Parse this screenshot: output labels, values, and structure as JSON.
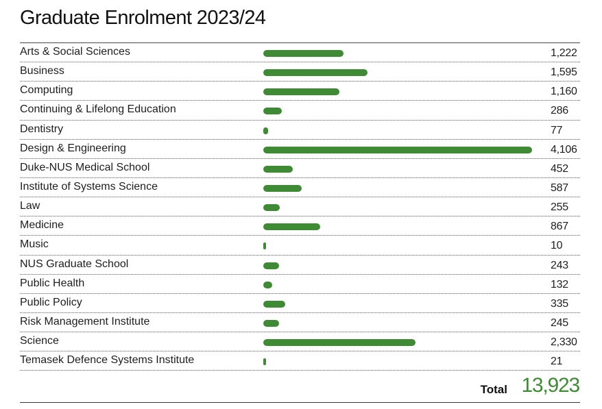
{
  "title": "Graduate Enrolment 2023/24",
  "accent_color": "#3f8a35",
  "total": {
    "label": "Total",
    "value": "13,923"
  },
  "chart_data": {
    "type": "bar",
    "orientation": "horizontal",
    "title": "Graduate Enrolment 2023/24",
    "categories": [
      "Arts & Social Sciences",
      "Business",
      "Computing",
      "Continuing & Lifelong Education",
      "Dentistry",
      "Design & Engineering",
      "Duke-NUS Medical School",
      "Institute of Systems Science",
      "Law",
      "Medicine",
      "Music",
      "NUS Graduate School",
      "Public Health",
      "Public Policy",
      "Risk Management Institute",
      "Science",
      "Temasek Defence Systems Institute"
    ],
    "values": [
      1222,
      1595,
      1160,
      286,
      77,
      4106,
      452,
      587,
      255,
      867,
      10,
      243,
      132,
      335,
      245,
      2330,
      21
    ],
    "value_labels": [
      "1,222",
      "1,595",
      "1,160",
      "286",
      "77",
      "4,106",
      "452",
      "587",
      "255",
      "867",
      "10",
      "243",
      "132",
      "335",
      "245",
      "2,330",
      "21"
    ],
    "xlim": [
      0,
      4106
    ],
    "grid": false,
    "legend": "none"
  }
}
